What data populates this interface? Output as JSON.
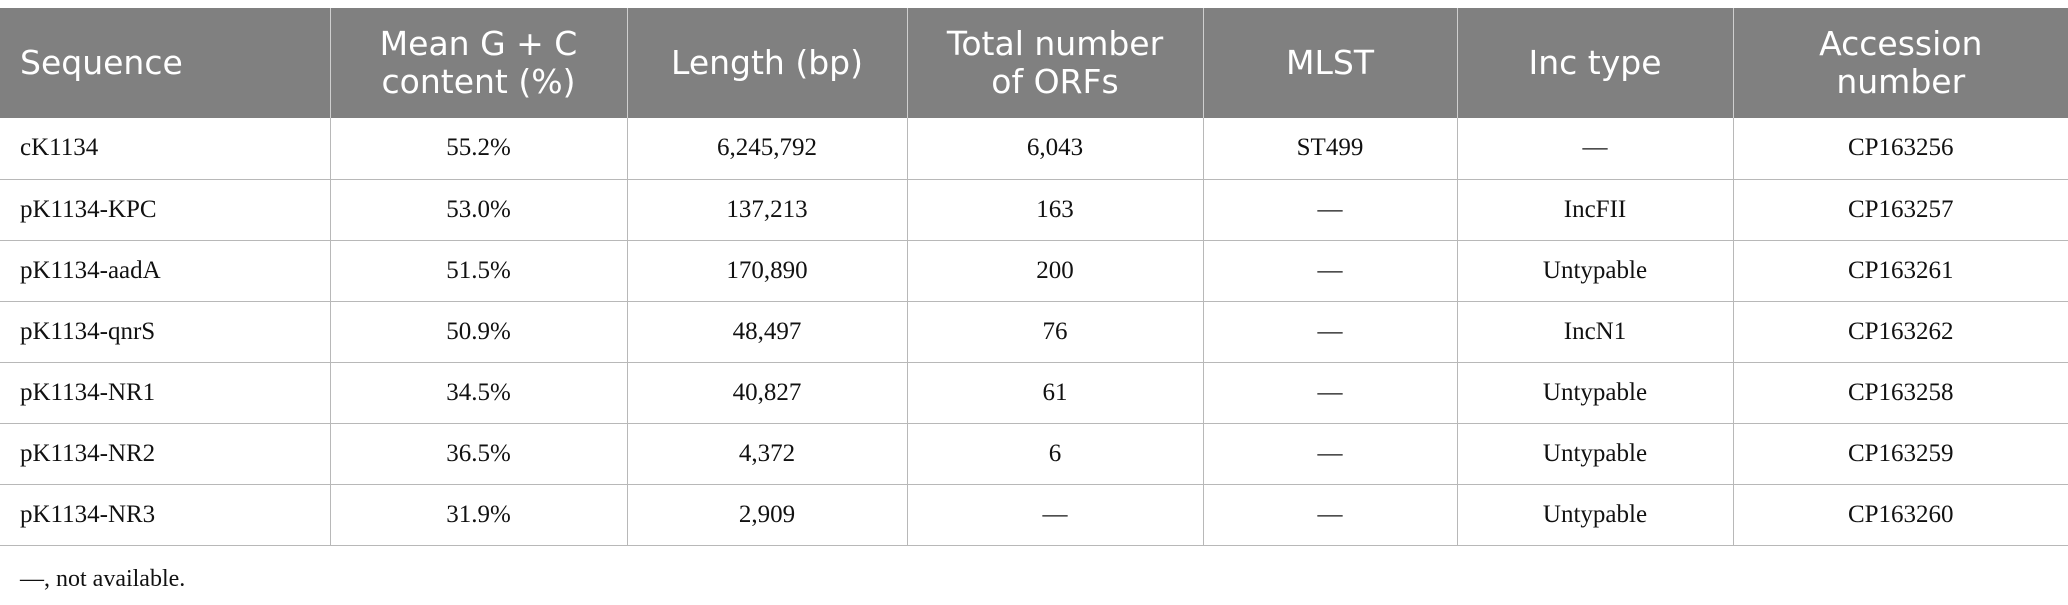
{
  "table": {
    "headers": [
      [
        "Sequence"
      ],
      [
        "Mean G + C",
        "content (%)"
      ],
      [
        "Length (bp)"
      ],
      [
        "Total number",
        "of ORFs"
      ],
      [
        "MLST"
      ],
      [
        "Inc type"
      ],
      [
        "Accession",
        "number"
      ]
    ],
    "rows": [
      [
        "cK1134",
        "55.2%",
        "6,245,792",
        "6,043",
        "ST499",
        "—",
        "CP163256"
      ],
      [
        "pK1134-KPC",
        "53.0%",
        "137,213",
        "163",
        "—",
        "IncFII",
        "CP163257"
      ],
      [
        "pK1134-aadA",
        "51.5%",
        "170,890",
        "200",
        "—",
        "Untypable",
        "CP163261"
      ],
      [
        "pK1134-qnrS",
        "50.9%",
        "48,497",
        "76",
        "—",
        "IncN1",
        "CP163262"
      ],
      [
        "pK1134-NR1",
        "34.5%",
        "40,827",
        "61",
        "—",
        "Untypable",
        "CP163258"
      ],
      [
        "pK1134-NR2",
        "36.5%",
        "4,372",
        "6",
        "—",
        "Untypable",
        "CP163259"
      ],
      [
        "pK1134-NR3",
        "31.9%",
        "2,909",
        "—",
        "—",
        "Untypable",
        "CP163260"
      ]
    ]
  },
  "footnote": "—, not available."
}
